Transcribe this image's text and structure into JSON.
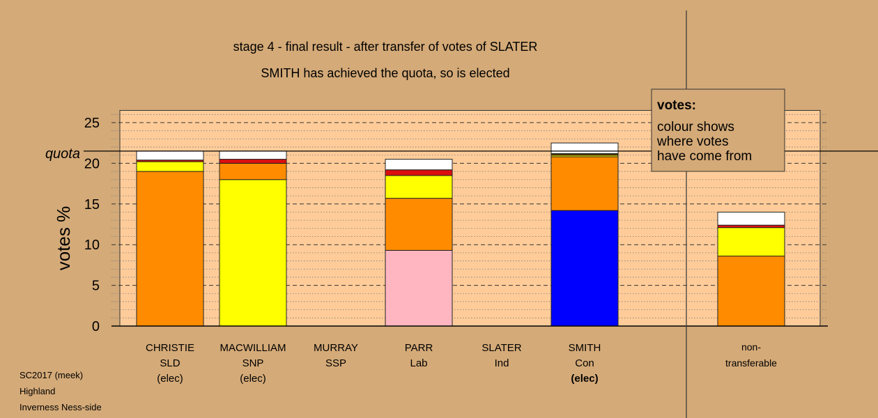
{
  "chart_data": {
    "type": "bar",
    "stacked": true,
    "title": "stage 4 - final result - after transfer of votes of SLATER",
    "subtitle": "SMITH has achieved the quota, so is elected",
    "ylabel": "votes %",
    "ylim": [
      0,
      26.5
    ],
    "yticks": [
      "0",
      "5",
      "10",
      "15",
      "20",
      "25"
    ],
    "grid": true,
    "quota": {
      "label": "quota",
      "value": 21.5
    },
    "legend": {
      "placement": "top-right",
      "title": "votes:",
      "lines": [
        "colour shows",
        "where votes",
        "have come from"
      ]
    },
    "categories": [
      {
        "name": "CHRISTIE",
        "party": "SLD",
        "status": "(elec)",
        "bold_status": false,
        "segments": [
          {
            "source": "SLD",
            "value": 19.0,
            "color": "#ff8c00"
          },
          {
            "source": "SNP",
            "value": 1.2,
            "color": "#ffff00"
          },
          {
            "source": "Lab",
            "value": 0.2,
            "color": "#dc0f0f"
          },
          {
            "source": "SSP",
            "value": 1.1,
            "color": "#ffffff"
          }
        ]
      },
      {
        "name": "MACWILLIAM",
        "party": "SNP",
        "status": "(elec)",
        "bold_status": false,
        "segments": [
          {
            "source": "SNP",
            "value": 18.0,
            "color": "#ffff00"
          },
          {
            "source": "SLD",
            "value": 2.0,
            "color": "#ff8c00"
          },
          {
            "source": "Lab",
            "value": 0.5,
            "color": "#dc0f0f"
          },
          {
            "source": "SSP",
            "value": 1.0,
            "color": "#ffffff"
          }
        ]
      },
      {
        "name": "MURRAY",
        "party": "SSP",
        "status": "",
        "bold_status": false,
        "segments": []
      },
      {
        "name": "PARR",
        "party": "Lab",
        "status": "",
        "bold_status": false,
        "segments": [
          {
            "source": "Lab",
            "value": 9.3,
            "color": "#ffb6c1"
          },
          {
            "source": "SLD",
            "value": 6.4,
            "color": "#ff8c00"
          },
          {
            "source": "SNP",
            "value": 2.8,
            "color": "#ffff00"
          },
          {
            "source": "Lab",
            "value": 0.7,
            "color": "#dc0f0f"
          },
          {
            "source": "SSP",
            "value": 1.3,
            "color": "#ffffff"
          }
        ]
      },
      {
        "name": "SLATER",
        "party": "Ind",
        "status": "",
        "bold_status": false,
        "segments": []
      },
      {
        "name": "SMITH",
        "party": "Con",
        "status": "(elec)",
        "bold_status": true,
        "segments": [
          {
            "source": "Con",
            "value": 14.2,
            "color": "#0000ff"
          },
          {
            "source": "SLD",
            "value": 6.6,
            "color": "#ff8c00"
          },
          {
            "source": "SNP",
            "value": 0.2,
            "color": "#ffff00"
          },
          {
            "source": "Ind",
            "value": 0.2,
            "color": "#5c3a00"
          },
          {
            "source": "SSP",
            "value": 1.3,
            "color": "#ffffff"
          }
        ]
      }
    ],
    "non_transferable": {
      "line1": "non-",
      "line2": "transferable",
      "segments": [
        {
          "source": "SLD",
          "value": 8.6,
          "color": "#ff8c00"
        },
        {
          "source": "SNP",
          "value": 3.5,
          "color": "#ffff00"
        },
        {
          "source": "Lab",
          "value": 0.3,
          "color": "#dc0f0f"
        },
        {
          "source": "SSP",
          "value": 1.6,
          "color": "#ffffff"
        }
      ]
    }
  },
  "footer": {
    "lines": [
      "SC2017 (meek)",
      "Highland",
      "Inverness Ness-side"
    ]
  }
}
